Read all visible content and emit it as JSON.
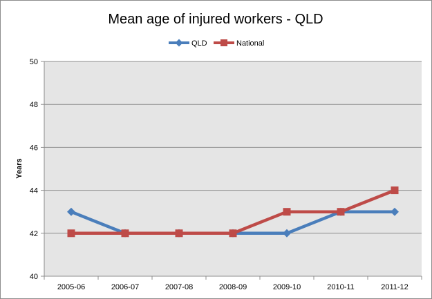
{
  "chart_data": {
    "type": "line",
    "title": "Mean age of injured workers - QLD",
    "xlabel": "",
    "ylabel": "Years",
    "categories": [
      "2005-06",
      "2006-07",
      "2007-08",
      "2008-09",
      "2009-10",
      "2010-11",
      "2011-12"
    ],
    "series": [
      {
        "name": "QLD",
        "values": [
          43,
          42,
          42,
          42,
          42,
          43,
          43
        ],
        "color": "#4a7ebb",
        "marker": "diamond"
      },
      {
        "name": "National",
        "values": [
          42,
          42,
          42,
          42,
          43,
          43,
          44
        ],
        "color": "#be4b48",
        "marker": "square"
      }
    ],
    "ylim": [
      40,
      50
    ],
    "yticks": [
      40,
      42,
      44,
      46,
      48,
      50
    ],
    "grid": true,
    "legend_position": "top",
    "plot_background": "#e5e5e5",
    "grid_color": "#8c8c8c"
  }
}
